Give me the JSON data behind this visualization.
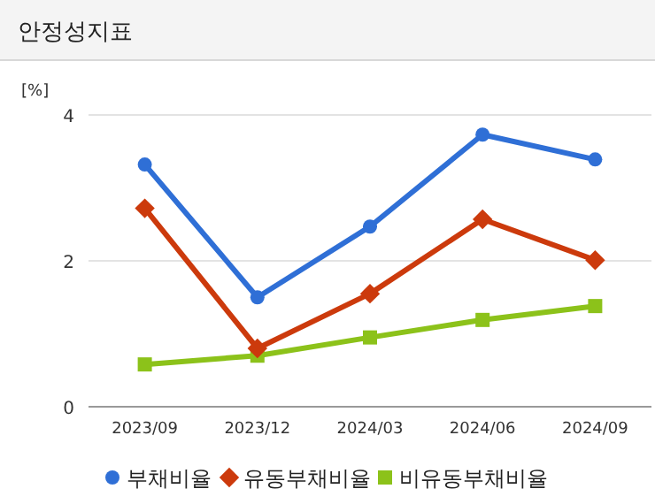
{
  "chart_data": {
    "type": "line",
    "title": "안정성지표",
    "ylabel": "[%]",
    "categories": [
      "2023/09",
      "2023/12",
      "2024/03",
      "2024/06",
      "2024/09"
    ],
    "series": [
      {
        "name": "부채비율",
        "color": "#2f6fd6",
        "marker": "circle",
        "values": [
          3.32,
          1.5,
          2.47,
          3.73,
          3.39
        ]
      },
      {
        "name": "유동부채비율",
        "color": "#cc3a0c",
        "marker": "diamond",
        "values": [
          2.72,
          0.8,
          1.55,
          2.57,
          2.01
        ]
      },
      {
        "name": "비유동부채비율",
        "color": "#8cc21a",
        "marker": "square",
        "values": [
          0.58,
          0.7,
          0.95,
          1.19,
          1.38
        ]
      }
    ],
    "ylim": [
      0,
      4
    ],
    "yticks": [
      0,
      2,
      4
    ],
    "grid": "y",
    "legend": "bottom"
  }
}
